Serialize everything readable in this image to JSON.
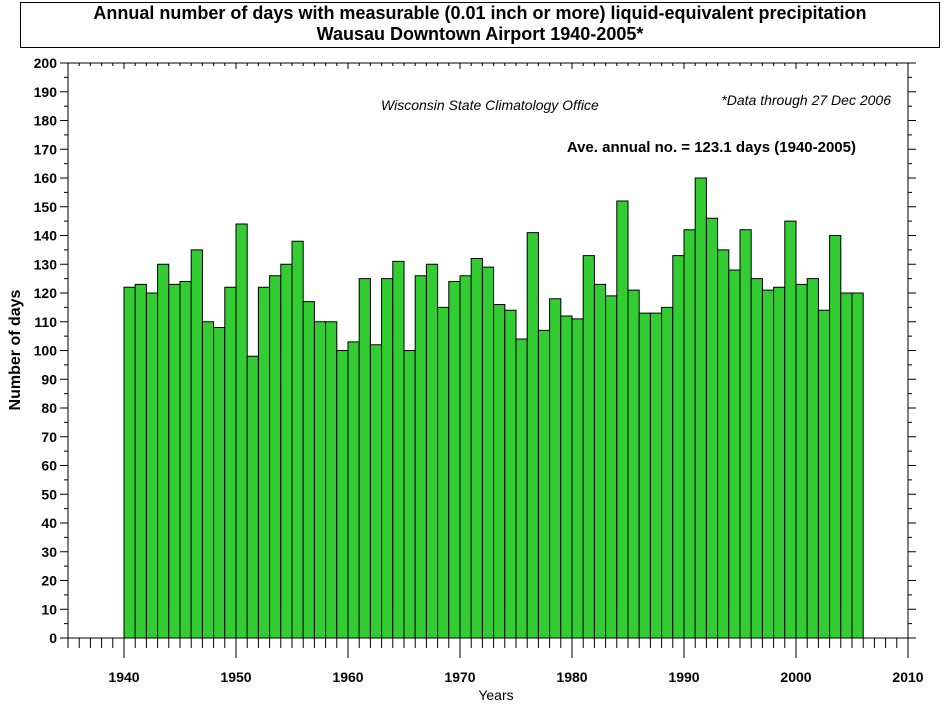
{
  "chart_data": {
    "type": "bar",
    "title": "Annual number of days with measurable (0.01 inch or more) liquid-equivalent precipitation",
    "subtitle": "Wausau Downtown Airport  1940-2005*",
    "xlabel": "Years",
    "ylabel": "Number of days",
    "xlim": [
      1935,
      2010
    ],
    "ylim": [
      0,
      200
    ],
    "xticks": [
      1940,
      1950,
      1960,
      1970,
      1980,
      1990,
      2000,
      2010
    ],
    "yticks": [
      0,
      10,
      20,
      30,
      40,
      50,
      60,
      70,
      80,
      90,
      100,
      110,
      120,
      130,
      140,
      150,
      160,
      170,
      180,
      190,
      200
    ],
    "grid": false,
    "bar_color": "#33cc33",
    "annotations": {
      "source": "Wisconsin State Climatology Office",
      "data_note": "*Data through 27 Dec 2006",
      "average": "Ave. annual no. = 123.1 days (1940-2005)"
    },
    "x": [
      1941,
      1942,
      1943,
      1944,
      1945,
      1946,
      1947,
      1948,
      1949,
      1950,
      1951,
      1952,
      1953,
      1954,
      1955,
      1956,
      1957,
      1958,
      1959,
      1960,
      1961,
      1962,
      1963,
      1964,
      1965,
      1966,
      1967,
      1968,
      1969,
      1970,
      1971,
      1972,
      1973,
      1974,
      1975,
      1976,
      1977,
      1978,
      1979,
      1980,
      1981,
      1982,
      1983,
      1984,
      1985,
      1986,
      1987,
      1988,
      1989,
      1990,
      1991,
      1992,
      1993,
      1994,
      1995,
      1996,
      1997,
      1998,
      1999,
      2000,
      2001,
      2002,
      2003,
      2004,
      2005,
      2006
    ],
    "values": [
      122,
      123,
      120,
      130,
      123,
      124,
      135,
      110,
      108,
      122,
      144,
      98,
      122,
      126,
      130,
      138,
      117,
      110,
      110,
      100,
      103,
      125,
      102,
      125,
      131,
      100,
      126,
      130,
      115,
      124,
      126,
      132,
      129,
      116,
      114,
      104,
      141,
      107,
      118,
      112,
      111,
      133,
      123,
      119,
      152,
      121,
      113,
      113,
      115,
      133,
      142,
      160,
      146,
      135,
      128,
      142,
      125,
      121,
      122,
      145,
      123,
      125,
      114,
      140,
      120,
      120
    ]
  }
}
